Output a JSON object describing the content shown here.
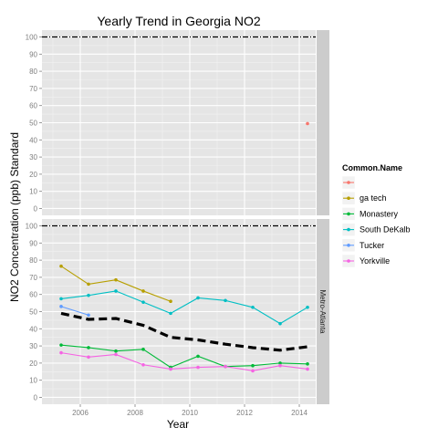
{
  "chart_data": {
    "type": "line",
    "title": "Yearly Trend in Georgia NO2",
    "xlabel": "Year",
    "ylabel": "NO2 Concentration (ppb) Standard",
    "xlim": [
      2004.6,
      2014.6
    ],
    "ylim": [
      -4,
      104
    ],
    "x_ticks": [
      2006,
      2008,
      2010,
      2012,
      2014
    ],
    "y_ticks": [
      0,
      10,
      20,
      30,
      40,
      50,
      60,
      70,
      80,
      90,
      100
    ],
    "grid": true,
    "standard_line": 100,
    "legend": {
      "title": "Common.Name",
      "placement": "right",
      "entries": [
        {
          "label": "",
          "color": "#F8766D"
        },
        {
          "label": "ga tech",
          "color": "#B79F00"
        },
        {
          "label": "Monastery",
          "color": "#00BA38"
        },
        {
          "label": "South DeKalb",
          "color": "#00BFC4"
        },
        {
          "label": "Tucker",
          "color": "#619CFF"
        },
        {
          "label": "Yorkville",
          "color": "#F564E3"
        }
      ]
    },
    "panels": [
      {
        "strip_label": "",
        "series": [
          {
            "color": "#F8766D",
            "x": [
              2014.3
            ],
            "y": [
              49.5
            ]
          }
        ]
      },
      {
        "strip_label": "Metro-Atlanta",
        "series": [
          {
            "color": "#B79F00",
            "x": [
              2005.3,
              2006.3,
              2007.3,
              2008.3,
              2009.3
            ],
            "y": [
              76.5,
              66,
              68.5,
              62,
              56
            ]
          },
          {
            "color": "#00BA38",
            "x": [
              2005.3,
              2006.3,
              2007.3,
              2008.3,
              2009.3,
              2010.3,
              2011.3,
              2012.3,
              2013.3,
              2014.3
            ],
            "y": [
              30.5,
              29,
              27,
              28,
              17.5,
              24,
              18,
              18.5,
              20,
              19.5
            ]
          },
          {
            "color": "#00BFC4",
            "x": [
              2005.3,
              2006.3,
              2007.3,
              2008.3,
              2009.3,
              2010.3,
              2011.3,
              2012.3,
              2013.3,
              2014.3
            ],
            "y": [
              57.5,
              59.5,
              62,
              55.5,
              49,
              58,
              56.5,
              52.5,
              43,
              52.5
            ]
          },
          {
            "color": "#619CFF",
            "x": [
              2005.3,
              2006.3
            ],
            "y": [
              53,
              48
            ]
          },
          {
            "color": "#F564E3",
            "x": [
              2005.3,
              2006.3,
              2007.3,
              2008.3,
              2009.3,
              2010.3,
              2011.3,
              2012.3,
              2013.3,
              2014.3
            ],
            "y": [
              26,
              23.5,
              25,
              19,
              16.5,
              17.5,
              18,
              15.5,
              18.5,
              16.5
            ]
          }
        ],
        "mean_line": {
          "color": "#000000",
          "x": [
            2005.3,
            2006.3,
            2007.3,
            2008.3,
            2009.3,
            2010.3,
            2011.3,
            2012.3,
            2013.3,
            2014.3
          ],
          "y": [
            49,
            45.5,
            46,
            42,
            35,
            33.5,
            31,
            29,
            27.5,
            29.5
          ]
        }
      }
    ]
  }
}
